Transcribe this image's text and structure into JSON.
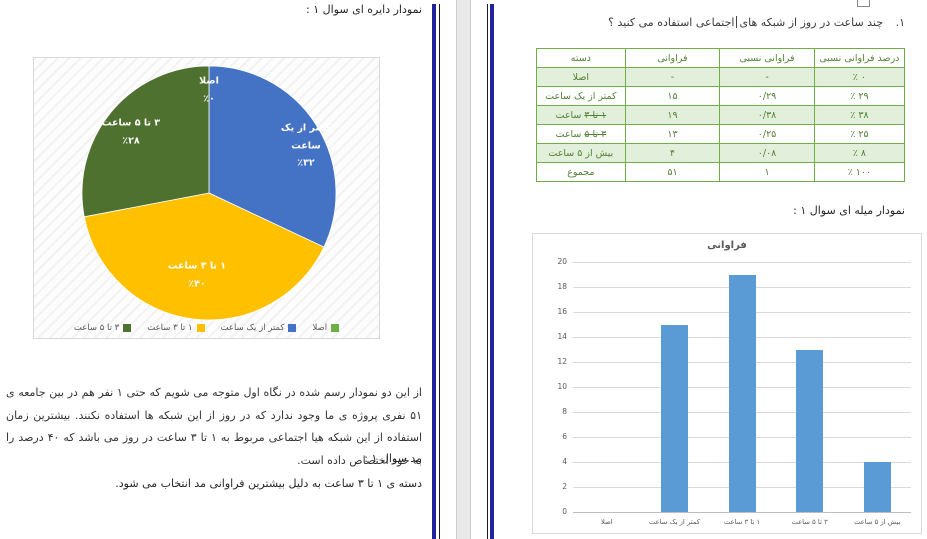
{
  "left_page": {
    "pie_section_title": "نمودار دایره ای سوال ۱ :",
    "analysis_paragraph": "از این دو نمودار رسم شده در نگاه اول متوجه می شویم که حتی ۱ نفر هم در بین جامعه ی ۵۱ نفری پروژه ی ما وجود ندارد که در روز از این شبکه ها استفاده نکنند. بیشترین زمان استفاده از این شبکه هیا اجتماعی مربوط به ۱ تا ۳ ساعت در روز می باشد که ۴۰ درصد را به خود اختصاص داده است.",
    "mode_label": "مد سوال ۱ :",
    "mode_text": "دسته ی ۱ تا ۳ ساعت به دلیل بیشترین فراوانی مد انتخاب می شود."
  },
  "right_page": {
    "question_number": "۱.",
    "question_before_cursor": "چند ساعت در روز از شبکه های",
    "question_after_cursor": "اجتماعی استفاده می کنید ؟",
    "bar_section_title": "نمودار میله ای سوال ۱ :",
    "table": {
      "headers": [
        "دسته",
        "فراوانی",
        "فراوانی نسبی",
        "درصد فراوانی نسبی"
      ],
      "rows": [
        {
          "category_struck": "",
          "category": "اصلا",
          "frequency": "-",
          "relative_frequency": "-",
          "percent": "٪ ۰",
          "shaded": true
        },
        {
          "category_struck": "",
          "category": "کمتر از یک ساعت",
          "frequency": "۱۵",
          "relative_frequency": "۰/۲۹",
          "percent": "٪ ۲۹",
          "shaded": false
        },
        {
          "category_struck": "۱ تا ۳",
          "category": " ساعت",
          "frequency": "۱۹",
          "relative_frequency": "۰/۳۸",
          "percent": "٪ ۳۸",
          "shaded": true
        },
        {
          "category_struck": "۳ تا ۵",
          "category": " ساعت",
          "frequency": "۱۳",
          "relative_frequency": "۰/۲۵",
          "percent": "٪ ۲۵",
          "shaded": false
        },
        {
          "category_struck": "",
          "category": "بیش از ۵ ساعت",
          "frequency": "۴",
          "relative_frequency": "۰/۰۸",
          "percent": "٪ ۸",
          "shaded": true
        },
        {
          "category_struck": "",
          "category": "مجموع",
          "frequency": "۵۱",
          "relative_frequency": "۱",
          "percent": "٪ ۱۰۰",
          "shaded": false
        }
      ]
    }
  },
  "chart_data": [
    {
      "type": "pie",
      "title": "",
      "labels": [
        "اصلا",
        "کمتر از یک ساعت",
        "۱ تا ۳ ساعت",
        "۳ تا ۵ ساعت"
      ],
      "values_percent": [
        0,
        32,
        40,
        28
      ],
      "slice_label_lines": [
        [
          "اصلا"
        ],
        [
          "کمتر از یک",
          "ساعت"
        ],
        [
          "۱ تا ۳ ساعت"
        ],
        [
          "۳ تا ۵ ساعت"
        ]
      ],
      "slice_percent_labels": [
        "٪۰",
        "٪۳۲",
        "٪۴۰",
        "٪۲۸"
      ],
      "colors": [
        "#70AD47",
        "#4472C4",
        "#FFC000",
        "#4E7130"
      ],
      "legend_position": "bottom",
      "legend": [
        {
          "label": "۳ تا ۵ ساعت",
          "color": "#4E7130"
        },
        {
          "label": "۱ تا ۳ ساعت",
          "color": "#FFC000"
        },
        {
          "label": "کمتر از یک ساعت",
          "color": "#4472C4"
        },
        {
          "label": "اصلا",
          "color": "#70AD47"
        }
      ]
    },
    {
      "type": "bar",
      "title": "فراوانی",
      "categories": [
        "اصلا",
        "کمتر از یک ساعت",
        "۱ تا ۳ ساعت",
        "۳ تا ۵ ساعت",
        "بیش از ۵ ساعت"
      ],
      "values": [
        0,
        15,
        19,
        13,
        4
      ],
      "xlabel": "",
      "ylabel": "",
      "ylim": [
        0,
        20
      ],
      "ytick_step": 2,
      "ytick_labels": [
        "0",
        "2",
        "4",
        "6",
        "8",
        "10",
        "12",
        "14",
        "16",
        "18",
        "20"
      ],
      "bar_color": "#5B9BD5",
      "grid": true,
      "legend_position": "none"
    }
  ],
  "colors": {
    "page_border_navy": "#22229B",
    "table_text_green": "#538135",
    "table_border_green": "#70AD47",
    "table_shaded_row": "#E2EFDA",
    "chart_frame_gray": "#D9D9D9",
    "axis_text_gray": "#595959",
    "bar_blue": "#5B9BD5",
    "pie_blue": "#4472C4",
    "pie_yellow": "#FFC000",
    "pie_dark_green": "#4E7130",
    "pie_light_green": "#70AD47"
  }
}
